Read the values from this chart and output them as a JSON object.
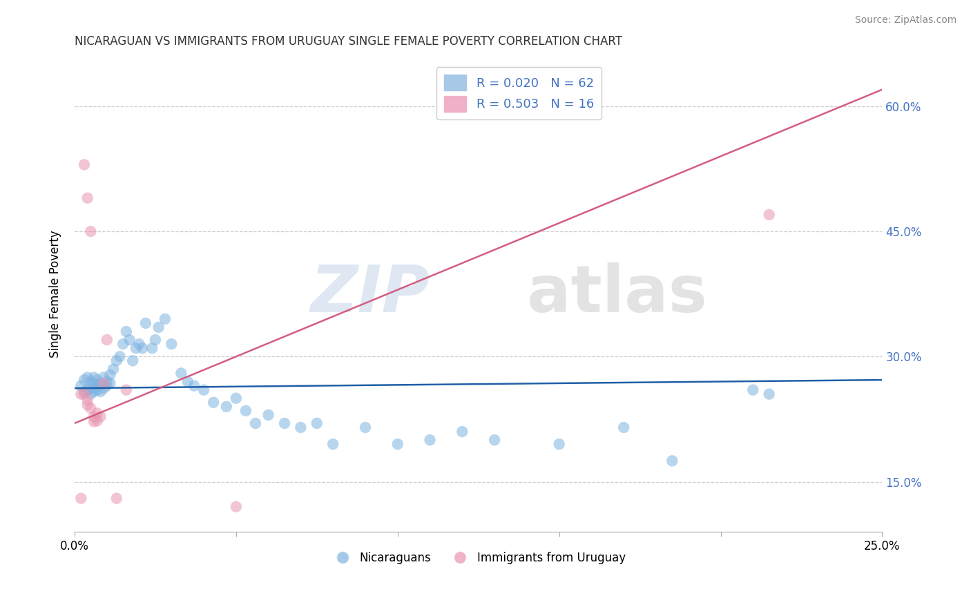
{
  "title": "NICARAGUAN VS IMMIGRANTS FROM URUGUAY SINGLE FEMALE POVERTY CORRELATION CHART",
  "source": "Source: ZipAtlas.com",
  "ylabel": "Single Female Poverty",
  "y_ticks": [
    0.15,
    0.3,
    0.45,
    0.6
  ],
  "y_tick_labels": [
    "15.0%",
    "30.0%",
    "45.0%",
    "60.0%"
  ],
  "xlim": [
    0.0,
    0.25
  ],
  "ylim": [
    0.09,
    0.66
  ],
  "blue_color": "#7eb3e0",
  "pink_color": "#e896b0",
  "blue_line_color": "#1f5fa6",
  "pink_line_color": "#d45c80",
  "blue_scatter": {
    "x": [
      0.002,
      0.003,
      0.003,
      0.004,
      0.004,
      0.005,
      0.005,
      0.005,
      0.006,
      0.006,
      0.006,
      0.007,
      0.007,
      0.007,
      0.008,
      0.008,
      0.009,
      0.009,
      0.01,
      0.01,
      0.011,
      0.011,
      0.012,
      0.013,
      0.014,
      0.015,
      0.016,
      0.017,
      0.018,
      0.019,
      0.02,
      0.021,
      0.022,
      0.024,
      0.025,
      0.026,
      0.028,
      0.03,
      0.033,
      0.035,
      0.037,
      0.04,
      0.043,
      0.047,
      0.05,
      0.053,
      0.056,
      0.06,
      0.065,
      0.07,
      0.075,
      0.08,
      0.09,
      0.1,
      0.11,
      0.12,
      0.13,
      0.15,
      0.17,
      0.185,
      0.21,
      0.215
    ],
    "y": [
      0.265,
      0.258,
      0.272,
      0.26,
      0.275,
      0.255,
      0.262,
      0.27,
      0.258,
      0.268,
      0.275,
      0.26,
      0.265,
      0.272,
      0.258,
      0.268,
      0.262,
      0.275,
      0.265,
      0.27,
      0.268,
      0.278,
      0.285,
      0.295,
      0.3,
      0.315,
      0.33,
      0.32,
      0.295,
      0.31,
      0.315,
      0.31,
      0.34,
      0.31,
      0.32,
      0.335,
      0.345,
      0.315,
      0.28,
      0.27,
      0.265,
      0.26,
      0.245,
      0.24,
      0.25,
      0.235,
      0.22,
      0.23,
      0.22,
      0.215,
      0.22,
      0.195,
      0.215,
      0.195,
      0.2,
      0.21,
      0.2,
      0.195,
      0.215,
      0.175,
      0.26,
      0.255
    ]
  },
  "pink_scatter": {
    "x": [
      0.002,
      0.003,
      0.004,
      0.004,
      0.005,
      0.006,
      0.006,
      0.007,
      0.007,
      0.008,
      0.009,
      0.01,
      0.013,
      0.016,
      0.05,
      0.215
    ],
    "y": [
      0.255,
      0.255,
      0.248,
      0.242,
      0.238,
      0.228,
      0.222,
      0.232,
      0.223,
      0.228,
      0.268,
      0.32,
      0.13,
      0.26,
      0.12,
      0.47
    ]
  },
  "pink_outliers": {
    "x": [
      0.003,
      0.004,
      0.005,
      0.002
    ],
    "y": [
      0.53,
      0.49,
      0.45,
      0.13
    ]
  },
  "blue_line_x": [
    0.0,
    0.25
  ],
  "blue_line_y": [
    0.262,
    0.272
  ],
  "pink_line_x": [
    0.0,
    0.25
  ],
  "pink_line_y": [
    0.22,
    0.62
  ],
  "background_color": "#ffffff",
  "grid_color": "#cccccc"
}
